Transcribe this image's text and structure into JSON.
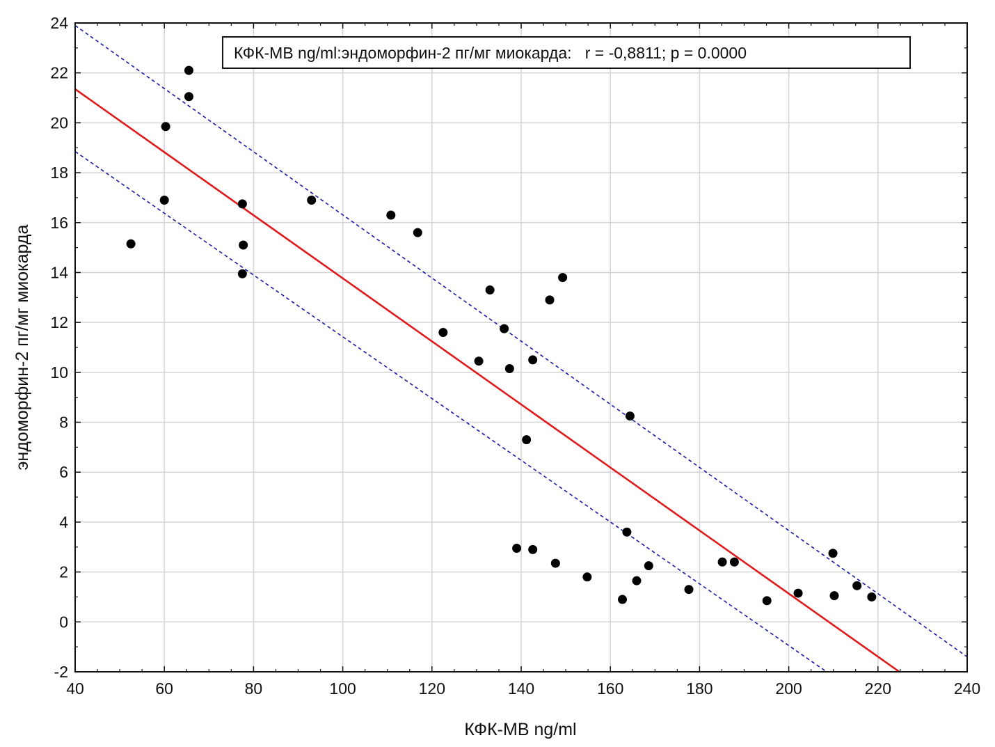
{
  "chart_data": {
    "type": "scatter",
    "title": "",
    "xlabel": "КФК-МВ ng/ml",
    "ylabel": "эндоморфин-2 пг/мг миокарда",
    "xlim": [
      40,
      240
    ],
    "ylim": [
      -2,
      24
    ],
    "xticks": [
      40,
      60,
      80,
      100,
      120,
      140,
      160,
      180,
      200,
      220,
      240
    ],
    "yticks": [
      -2,
      0,
      2,
      4,
      6,
      8,
      10,
      12,
      14,
      16,
      18,
      20,
      22,
      24
    ],
    "grid": true,
    "annotation": "КФК-МВ ng/ml:эндоморфин-2 пг/мг миокарда:   r = -0,8811; p = 0.0000",
    "colors": {
      "points": "#000000",
      "fit_line": "#e0191b",
      "confidence_band": "#1a1aa8",
      "grid": "#d4d4d4"
    },
    "points": [
      {
        "x": 52.5,
        "y": 15.15
      },
      {
        "x": 60,
        "y": 16.9
      },
      {
        "x": 60.3,
        "y": 19.85
      },
      {
        "x": 65.5,
        "y": 22.1
      },
      {
        "x": 65.5,
        "y": 21.05
      },
      {
        "x": 77.5,
        "y": 16.75
      },
      {
        "x": 77.7,
        "y": 15.1
      },
      {
        "x": 77.5,
        "y": 13.95
      },
      {
        "x": 93,
        "y": 16.9
      },
      {
        "x": 110.8,
        "y": 16.3
      },
      {
        "x": 116.8,
        "y": 15.6
      },
      {
        "x": 122.5,
        "y": 11.6
      },
      {
        "x": 130.5,
        "y": 10.45
      },
      {
        "x": 133,
        "y": 13.3
      },
      {
        "x": 136.2,
        "y": 11.75
      },
      {
        "x": 137.4,
        "y": 10.15
      },
      {
        "x": 141.2,
        "y": 7.3
      },
      {
        "x": 142.6,
        "y": 10.5
      },
      {
        "x": 146.4,
        "y": 12.9
      },
      {
        "x": 149.3,
        "y": 13.8
      },
      {
        "x": 164.4,
        "y": 8.25
      },
      {
        "x": 139,
        "y": 2.95
      },
      {
        "x": 142.6,
        "y": 2.9
      },
      {
        "x": 147.7,
        "y": 2.35
      },
      {
        "x": 154.8,
        "y": 1.8
      },
      {
        "x": 162.7,
        "y": 0.9
      },
      {
        "x": 163.7,
        "y": 3.6
      },
      {
        "x": 165.9,
        "y": 1.65
      },
      {
        "x": 168.6,
        "y": 2.25
      },
      {
        "x": 177.6,
        "y": 1.3
      },
      {
        "x": 185.1,
        "y": 2.4
      },
      {
        "x": 187.8,
        "y": 2.4
      },
      {
        "x": 195.1,
        "y": 0.85
      },
      {
        "x": 202.1,
        "y": 1.15
      },
      {
        "x": 209.9,
        "y": 2.75
      },
      {
        "x": 210.2,
        "y": 1.05
      },
      {
        "x": 215.3,
        "y": 1.45
      },
      {
        "x": 218.6,
        "y": 1.0
      }
    ],
    "fit_line": [
      {
        "x": 40,
        "y": 21.35
      },
      {
        "x": 224.8,
        "y": -2
      }
    ],
    "upper_band": [
      {
        "x": 40,
        "y": 23.9
      },
      {
        "x": 240,
        "y": -1.4
      }
    ],
    "lower_band": [
      {
        "x": 40,
        "y": 18.85
      },
      {
        "x": 208.5,
        "y": -2
      }
    ]
  }
}
